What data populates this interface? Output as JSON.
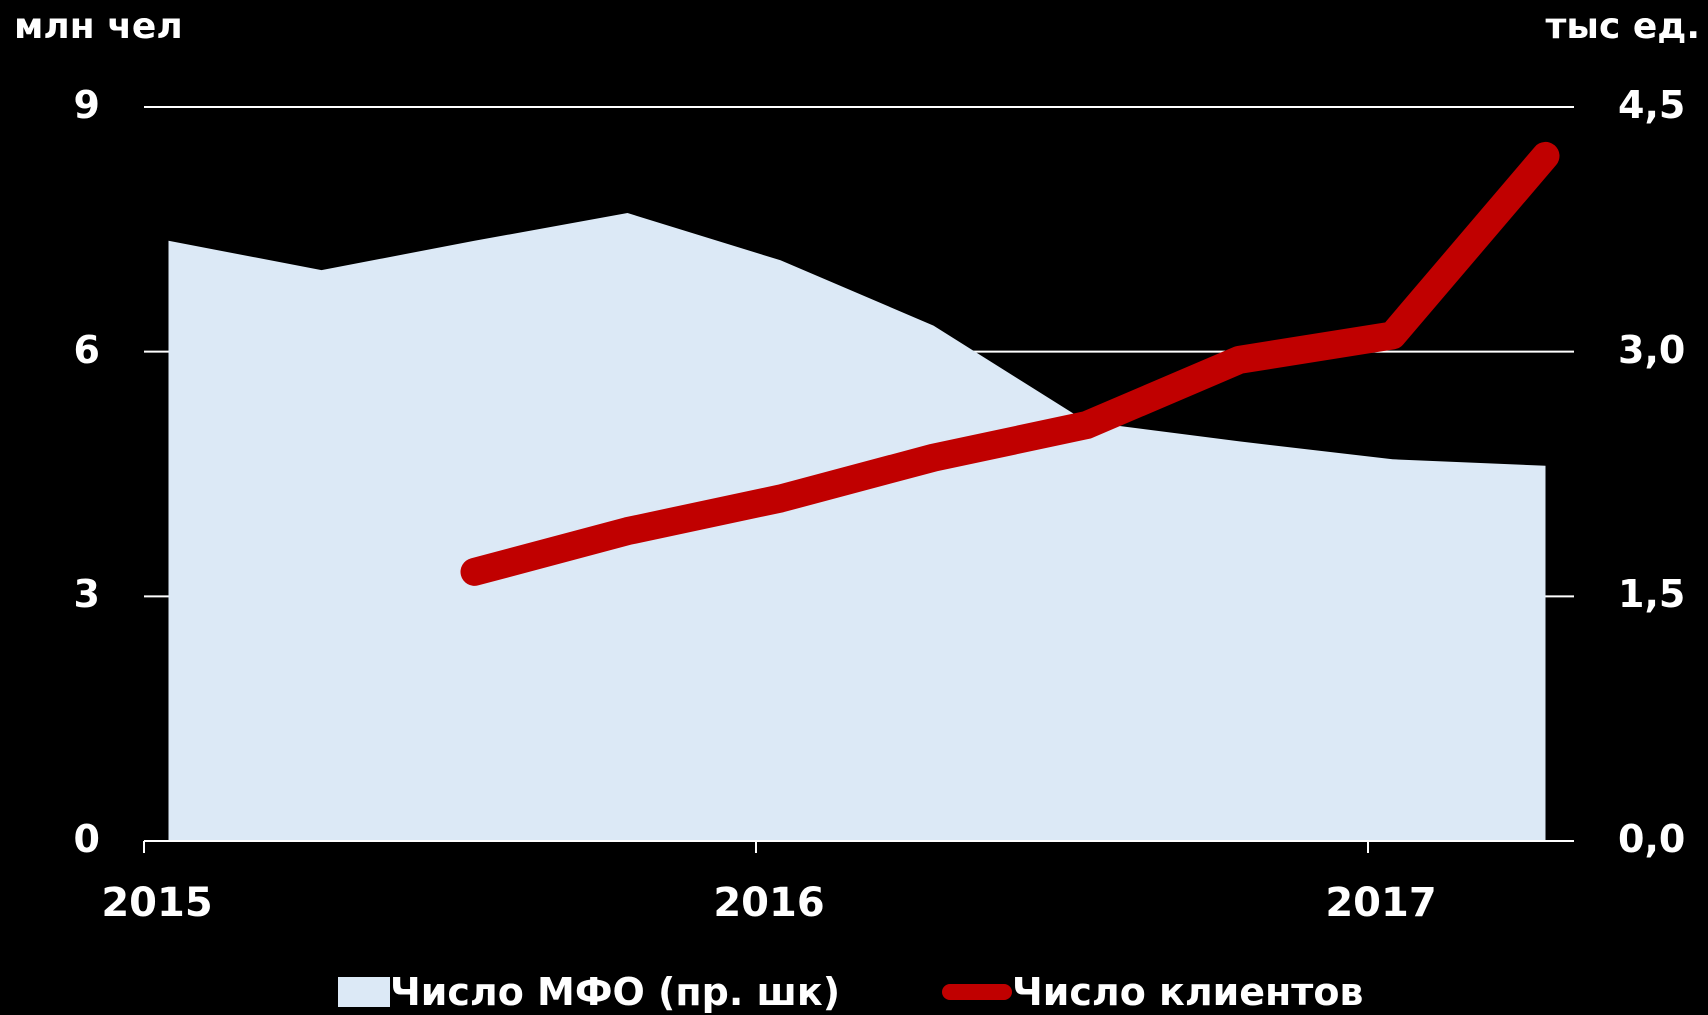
{
  "chart_data": {
    "type": "area",
    "left_unit": "млн чел",
    "right_unit": "тыс ед.",
    "left_ticks": [
      "0",
      "3",
      "6",
      "9"
    ],
    "right_ticks": [
      "0,0",
      "1,5",
      "3,0",
      "4,5"
    ],
    "ylim_left": [
      0,
      9
    ],
    "ylim_right": [
      0,
      4.5
    ],
    "x_tick_labels": [
      "2015",
      "2016",
      "2017"
    ],
    "x_ticks": [
      2015.0,
      2016.0,
      2017.0
    ],
    "grid": true,
    "legend_placement": "bottom",
    "series": [
      {
        "name": "Число МФО (пр. шк)",
        "type": "area",
        "axis": "right",
        "color": "#dce9f6",
        "x": [
          2015.04,
          2015.29,
          2015.54,
          2015.79,
          2016.04,
          2016.29,
          2016.54,
          2016.79,
          2017.04,
          2017.29
        ],
        "values": [
          3.68,
          3.5,
          3.68,
          3.85,
          3.56,
          3.16,
          2.57,
          2.45,
          2.34,
          2.3
        ]
      },
      {
        "name": "Число клиентов",
        "type": "line",
        "axis": "left",
        "color": "#c00000",
        "x": [
          2015.54,
          2015.79,
          2016.04,
          2016.29,
          2016.54,
          2016.79,
          2017.04,
          2017.29
        ],
        "values": [
          3.3,
          3.8,
          4.2,
          4.7,
          5.1,
          5.9,
          6.2,
          8.4
        ]
      }
    ]
  }
}
